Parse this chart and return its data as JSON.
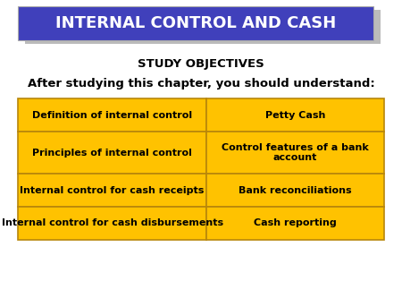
{
  "title": "INTERNAL CONTROL AND CASH",
  "title_bg": "#4040BB",
  "title_fg": "#FFFFFF",
  "study_objectives": "STUDY OBJECTIVES",
  "subtitle": "After studying this chapter, you should understand:",
  "bg_color": "#FFFFFF",
  "table_bg": "#FFC200",
  "table_border": "#B8860B",
  "table_text_color": "#000000",
  "shadow_color": "#BBBBBB",
  "table_cells": [
    [
      "Definition of internal control",
      "Petty Cash"
    ],
    [
      "Principles of internal control",
      "Control features of a bank\naccount"
    ],
    [
      "Internal control for cash receipts",
      "Bank reconciliations"
    ],
    [
      "Internal control for cash disbursements",
      "Cash reporting"
    ]
  ]
}
